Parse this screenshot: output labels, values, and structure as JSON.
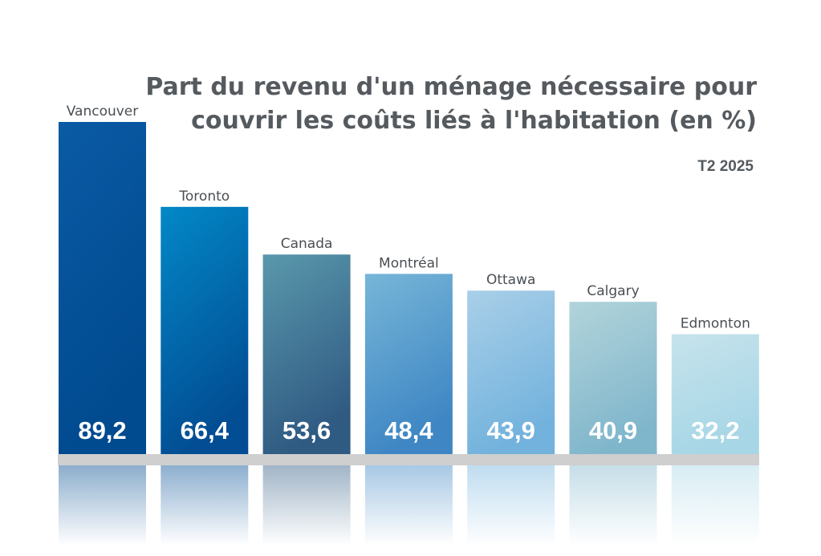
{
  "chart_title_line1": "Part du revenu d'un ménage nécessaire pour",
  "chart_title_line2": "couvrir les coûts liés à l'habitation (en %)",
  "chart_subtitle": "T2 2025",
  "chart_data": {
    "type": "bar",
    "title": "Part du revenu d'un ménage nécessaire pour couvrir les coûts liés à l'habitation (en %)",
    "subtitle": "T2 2025",
    "categories": [
      "Vancouver",
      "Toronto",
      "Canada",
      "Montréal",
      "Ottawa",
      "Calgary",
      "Edmonton"
    ],
    "values": [
      89.2,
      66.4,
      53.6,
      48.4,
      43.9,
      40.9,
      32.2
    ],
    "value_labels": [
      "89,2",
      "66,4",
      "53,6",
      "48,4",
      "43,9",
      "40,9",
      "32,2"
    ],
    "colors": [
      [
        "#0a5aa4",
        "#004a8f"
      ],
      [
        "#0288c7",
        "#024d93"
      ],
      [
        "#5a98ac",
        "#2f5a82"
      ],
      [
        "#77b6d8",
        "#3e86c4"
      ],
      [
        "#a9cfe8",
        "#72b2dd"
      ],
      [
        "#b2d4da",
        "#80b6cc"
      ],
      [
        "#c6e3ec",
        "#a7d6e6"
      ]
    ],
    "xlabel": "",
    "ylabel": "",
    "grid": false,
    "legend": "none"
  }
}
